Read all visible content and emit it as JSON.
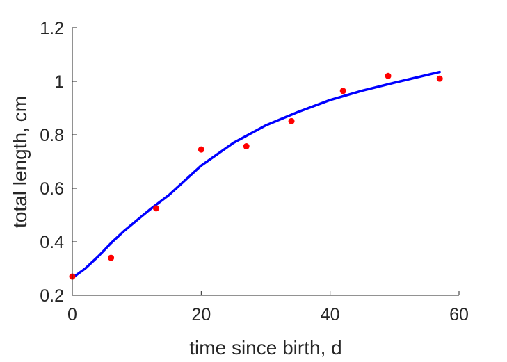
{
  "chart_data": {
    "type": "scatter",
    "title": "",
    "xlabel": "time since birth, d",
    "ylabel": "total length, cm",
    "xlim": [
      0,
      60
    ],
    "ylim": [
      0.2,
      1.2
    ],
    "xticks": [
      0,
      20,
      40,
      60
    ],
    "xtick_labels": [
      "0",
      "20",
      "40",
      "60"
    ],
    "yticks": [
      0.2,
      0.4,
      0.6,
      0.8,
      1.0,
      1.2
    ],
    "ytick_labels": [
      "0.2",
      "0.4",
      "0.6",
      "0.8",
      "1",
      "1.2"
    ],
    "grid": false,
    "series": [
      {
        "kind": "scatter",
        "color": "#ff0000",
        "x": [
          0,
          6,
          13,
          20,
          27,
          34,
          42,
          49,
          57
        ],
        "y": [
          0.27,
          0.34,
          0.525,
          0.745,
          0.757,
          0.851,
          0.964,
          1.02,
          1.01
        ]
      },
      {
        "kind": "line",
        "color": "#0000ff",
        "x": [
          0,
          2,
          4,
          6,
          8,
          10,
          12,
          15,
          20,
          25,
          30,
          35,
          40,
          45,
          50,
          57
        ],
        "y": [
          0.265,
          0.3,
          0.345,
          0.395,
          0.44,
          0.48,
          0.52,
          0.575,
          0.685,
          0.77,
          0.835,
          0.885,
          0.93,
          0.965,
          0.995,
          1.035
        ]
      }
    ]
  }
}
